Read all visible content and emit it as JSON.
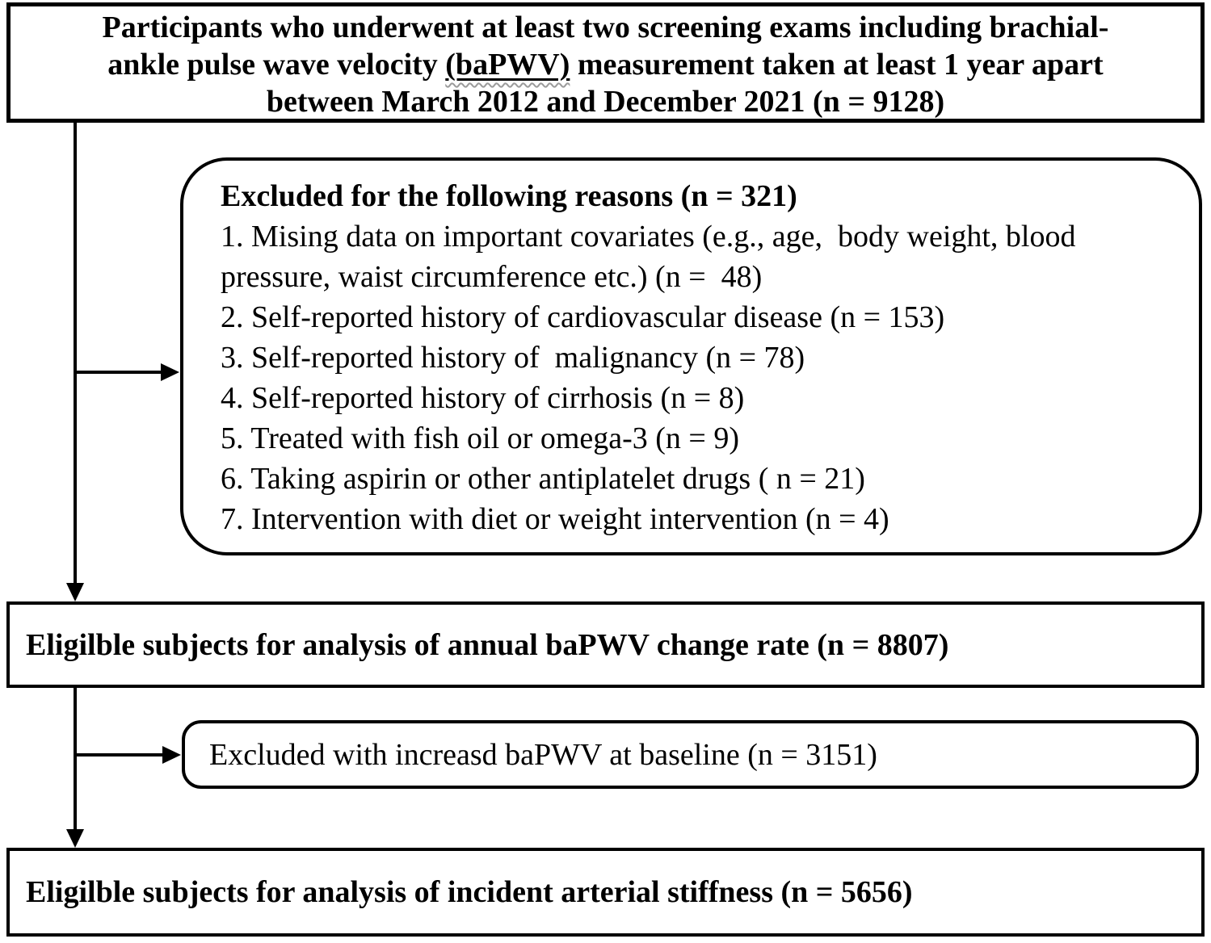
{
  "colors": {
    "line": "#000000",
    "text": "#000000",
    "background": "#ffffff",
    "underline_squiggle": "#9b9b9b"
  },
  "top_box": {
    "line1": "Participants who underwent at least two screening exams including brachial-",
    "line2_before": "ankle pulse wave velocity ",
    "line2_underlined": "(baPWV)",
    "line2_after": " measurement taken at least 1 year apart",
    "line3": "between March 2012 and December 2021 (n = 9128)"
  },
  "exclusion_box": {
    "title": "Excluded for the following reasons (n = 321)",
    "items": [
      [
        "1. Mising data on important covariates (e.g., age,  body weight, blood",
        "pressure, waist circumference etc.) (n =  48)"
      ],
      [
        "2. Self-reported history of cardiovascular disease (n = 153)"
      ],
      [
        "3. Self-reported history of  malignancy (n = 78)"
      ],
      [
        "4. Self-reported history of cirrhosis (n = 8)"
      ],
      [
        "5. Treated with fish oil or omega-3 (n = 9)"
      ],
      [
        "6. Taking aspirin or other antiplatelet drugs ( n = 21)"
      ],
      [
        "7. Intervention with diet or weight intervention (n = 4)"
      ]
    ]
  },
  "eligible_box_1": {
    "text": "Eligilble subjects for analysis of annual baPWV change rate (n = 8807)"
  },
  "excluded_box_2": {
    "text": "Excluded with increasd baPWV at baseline (n = 3151)"
  },
  "eligible_box_2": {
    "text": "Eligilble subjects for analysis of incident arterial stiffness (n = 5656)"
  }
}
